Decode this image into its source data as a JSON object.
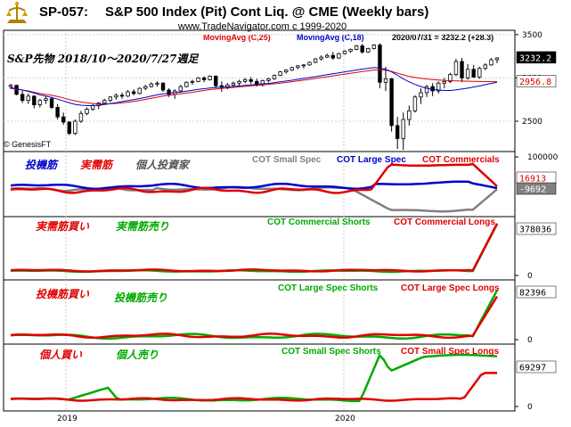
{
  "header": {
    "code": "SP-057:",
    "title": "S&P 500 Index (Pit) Cont Liq. @ CME  (Weekly bars)",
    "website": "www.TradeNavigator.com c 1999-2020",
    "ma1_label": "MovingAvg (C,25)",
    "ma2_label": "MovingAvg (C,18)",
    "last_quote": "2020/07/31 = 3232.2 (+28.3)",
    "copyright": "© GenesisFT"
  },
  "colors": {
    "red": "#e00000",
    "blue": "#0000cc",
    "green": "#00aa00",
    "gray": "#808080",
    "bg": "#ffffff",
    "tag_dark": "#000000"
  },
  "chart_data": [
    {
      "type": "candlestick",
      "panel": "price",
      "annotation": "S&P先物  2018/10～2020/7/27週足",
      "yticks": [
        2500,
        3000,
        3500
      ],
      "ylim": [
        2150,
        3550
      ],
      "value_tags": {
        "last": "3232.2",
        "ma": "2956.8"
      },
      "candles": [
        [
          2900,
          2930,
          2870,
          2915
        ],
        [
          2915,
          2920,
          2800,
          2810
        ],
        [
          2810,
          2850,
          2710,
          2740
        ],
        [
          2740,
          2820,
          2700,
          2790
        ],
        [
          2790,
          2800,
          2650,
          2690
        ],
        [
          2690,
          2760,
          2660,
          2740
        ],
        [
          2740,
          2790,
          2700,
          2760
        ],
        [
          2760,
          2780,
          2640,
          2660
        ],
        [
          2660,
          2700,
          2520,
          2550
        ],
        [
          2550,
          2600,
          2460,
          2490
        ],
        [
          2490,
          2500,
          2340,
          2360
        ],
        [
          2360,
          2520,
          2340,
          2500
        ],
        [
          2500,
          2620,
          2480,
          2590
        ],
        [
          2590,
          2660,
          2570,
          2640
        ],
        [
          2640,
          2700,
          2620,
          2680
        ],
        [
          2680,
          2720,
          2640,
          2710
        ],
        [
          2710,
          2760,
          2690,
          2740
        ],
        [
          2740,
          2790,
          2720,
          2780
        ],
        [
          2780,
          2820,
          2750,
          2800
        ],
        [
          2800,
          2830,
          2760,
          2790
        ],
        [
          2790,
          2860,
          2780,
          2840
        ],
        [
          2840,
          2870,
          2800,
          2820
        ],
        [
          2820,
          2890,
          2810,
          2880
        ],
        [
          2880,
          2920,
          2860,
          2900
        ],
        [
          2900,
          2950,
          2890,
          2930
        ],
        [
          2930,
          2960,
          2900,
          2940
        ],
        [
          2940,
          2950,
          2840,
          2860
        ],
        [
          2860,
          2880,
          2780,
          2810
        ],
        [
          2810,
          2870,
          2760,
          2850
        ],
        [
          2850,
          2920,
          2830,
          2900
        ],
        [
          2900,
          2960,
          2890,
          2950
        ],
        [
          2950,
          2980,
          2920,
          2960
        ],
        [
          2960,
          3010,
          2950,
          3000
        ],
        [
          3000,
          3020,
          2950,
          2980
        ],
        [
          2980,
          3030,
          2970,
          3020
        ],
        [
          3020,
          3030,
          2880,
          2910
        ],
        [
          2910,
          2960,
          2840,
          2890
        ],
        [
          2890,
          2940,
          2870,
          2920
        ],
        [
          2920,
          2960,
          2890,
          2940
        ],
        [
          2940,
          2980,
          2910,
          2960
        ],
        [
          2960,
          3000,
          2940,
          2980
        ],
        [
          2980,
          3010,
          2930,
          2960
        ],
        [
          2960,
          2990,
          2900,
          2920
        ],
        [
          2920,
          2980,
          2900,
          2970
        ],
        [
          2970,
          3000,
          2950,
          2990
        ],
        [
          2990,
          3040,
          2980,
          3030
        ],
        [
          3030,
          3080,
          3020,
          3070
        ],
        [
          3070,
          3100,
          3050,
          3090
        ],
        [
          3090,
          3130,
          3080,
          3120
        ],
        [
          3120,
          3150,
          3100,
          3140
        ],
        [
          3140,
          3160,
          3110,
          3150
        ],
        [
          3150,
          3190,
          3140,
          3180
        ],
        [
          3180,
          3230,
          3170,
          3220
        ],
        [
          3220,
          3260,
          3200,
          3240
        ],
        [
          3240,
          3280,
          3230,
          3260
        ],
        [
          3260,
          3300,
          3210,
          3230
        ],
        [
          3230,
          3290,
          3220,
          3280
        ],
        [
          3280,
          3320,
          3270,
          3310
        ],
        [
          3310,
          3340,
          3290,
          3330
        ],
        [
          3330,
          3380,
          3320,
          3370
        ],
        [
          3370,
          3395,
          3280,
          3300
        ],
        [
          3300,
          3350,
          3290,
          3340
        ],
        [
          3340,
          3390,
          3330,
          3380
        ],
        [
          3380,
          3400,
          2880,
          2950
        ],
        [
          2950,
          3130,
          2850,
          2990
        ],
        [
          2990,
          3000,
          2380,
          2450
        ],
        [
          2450,
          2550,
          2180,
          2300
        ],
        [
          2300,
          2600,
          2170,
          2520
        ],
        [
          2520,
          2680,
          2450,
          2620
        ],
        [
          2620,
          2800,
          2600,
          2780
        ],
        [
          2780,
          2880,
          2700,
          2830
        ],
        [
          2830,
          2920,
          2780,
          2900
        ],
        [
          2900,
          2940,
          2790,
          2850
        ],
        [
          2850,
          2960,
          2820,
          2940
        ],
        [
          2940,
          3000,
          2880,
          2960
        ],
        [
          2960,
          3060,
          2940,
          3040
        ],
        [
          3040,
          3220,
          3020,
          3190
        ],
        [
          3190,
          3230,
          2950,
          3000
        ],
        [
          3000,
          3160,
          2980,
          3100
        ],
        [
          3100,
          3150,
          3000,
          3010
        ],
        [
          3010,
          3130,
          2990,
          3110
        ],
        [
          3110,
          3170,
          3090,
          3150
        ],
        [
          3150,
          3230,
          3140,
          3210
        ],
        [
          3210,
          3240,
          3170,
          3230
        ]
      ],
      "ma25": [
        2880,
        2870,
        2860,
        2850,
        2835,
        2820,
        2810,
        2800,
        2785,
        2770,
        2750,
        2735,
        2722,
        2712,
        2705,
        2700,
        2700,
        2702,
        2706,
        2712,
        2720,
        2730,
        2740,
        2752,
        2765,
        2778,
        2790,
        2800,
        2808,
        2816,
        2825,
        2835,
        2845,
        2855,
        2865,
        2872,
        2878,
        2884,
        2890,
        2896,
        2902,
        2908,
        2914,
        2920,
        2926,
        2932,
        2940,
        2948,
        2957,
        2966,
        2975,
        2984,
        2994,
        3004,
        3014,
        3024,
        3034,
        3044,
        3054,
        3064,
        3074,
        3082,
        3092,
        3095,
        3090,
        3075,
        3055,
        3035,
        3018,
        3005,
        2995,
        2988,
        2982,
        2977,
        2972,
        2968,
        2966,
        2964,
        2962,
        2960,
        2959,
        2958,
        2957,
        2957
      ],
      "ma18": [
        2890,
        2875,
        2860,
        2845,
        2825,
        2805,
        2790,
        2775,
        2755,
        2735,
        2712,
        2695,
        2685,
        2680,
        2680,
        2685,
        2694,
        2704,
        2714,
        2726,
        2738,
        2750,
        2762,
        2775,
        2790,
        2805,
        2815,
        2822,
        2830,
        2838,
        2848,
        2858,
        2868,
        2876,
        2884,
        2890,
        2894,
        2898,
        2902,
        2908,
        2914,
        2920,
        2926,
        2932,
        2938,
        2946,
        2955,
        2964,
        2974,
        2984,
        2994,
        3004,
        3015,
        3026,
        3037,
        3048,
        3059,
        3070,
        3081,
        3092,
        3102,
        3110,
        3120,
        3115,
        3100,
        3070,
        3030,
        2990,
        2955,
        2925,
        2900,
        2880,
        2868,
        2860,
        2855,
        2855,
        2862,
        2872,
        2882,
        2895,
        2908,
        2922,
        2936,
        2950
      ]
    },
    {
      "type": "line",
      "panel": "cot_net",
      "annotation_labels": [
        "投機筋",
        "実需筋",
        "個人投資家"
      ],
      "series": [
        {
          "name": "COT Small Spec",
          "color": "#808080"
        },
        {
          "name": "COT Large Spec",
          "color": "#0000cc"
        },
        {
          "name": "COT Commercials",
          "color": "#e00000"
        }
      ],
      "yticks": [
        100000
      ],
      "value_tags": [
        "16913",
        "-9692"
      ]
    },
    {
      "type": "line",
      "panel": "commercial",
      "annotation_labels": [
        "実需筋買い",
        "実需筋売り"
      ],
      "series": [
        {
          "name": "COT Commercial Shorts",
          "color": "#00aa00"
        },
        {
          "name": "COT Commercial Longs",
          "color": "#e00000"
        }
      ],
      "yticks": [
        0
      ],
      "value_tags": [
        "378036"
      ]
    },
    {
      "type": "line",
      "panel": "large_spec",
      "annotation_labels": [
        "投機筋買い",
        "投機筋売り"
      ],
      "series": [
        {
          "name": "COT Large Spec Shorts",
          "color": "#00aa00"
        },
        {
          "name": "COT Large Spec Longs",
          "color": "#e00000"
        }
      ],
      "yticks": [
        0
      ],
      "value_tags": [
        "82396"
      ]
    },
    {
      "type": "line",
      "panel": "small_spec",
      "annotation_labels": [
        "個人買い",
        "個人売り"
      ],
      "series": [
        {
          "name": "COT Small Spec Shorts",
          "color": "#00aa00"
        },
        {
          "name": "COT Small Spec Longs",
          "color": "#e00000"
        }
      ],
      "yticks": [
        0
      ],
      "value_tags": [
        "69297"
      ]
    }
  ],
  "x_axis": {
    "labels": [
      "2019",
      "2020"
    ]
  }
}
